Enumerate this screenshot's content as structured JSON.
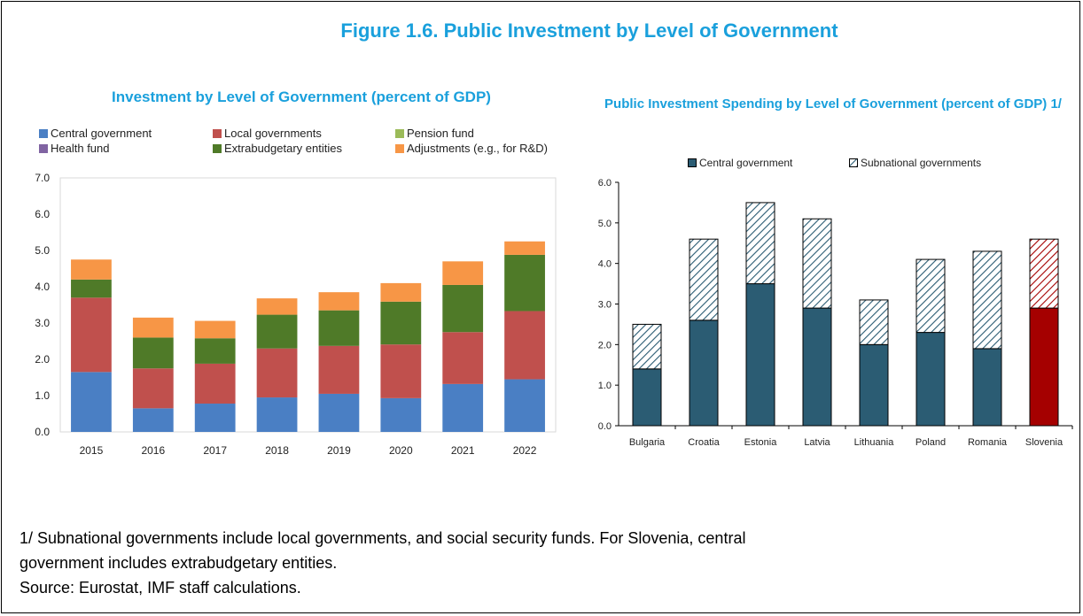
{
  "figure_title": "Figure 1.6. Public Investment by Level of Government",
  "colors": {
    "central": "#4a7fc4",
    "local": "#c0504d",
    "pension": "#9bbb59",
    "health": "#8064a2",
    "extrabudgetary": "#4f7a28",
    "adjustments": "#f79646",
    "right_central": "#2b5c73",
    "slovenia": "#a50000",
    "title": "#1aa0dc"
  },
  "chart_data": [
    {
      "type": "bar",
      "stacked": true,
      "title": "Investment by Level of Government (percent of GDP)",
      "categories": [
        "2015",
        "2016",
        "2017",
        "2018",
        "2019",
        "2020",
        "2021",
        "2022"
      ],
      "series": [
        {
          "name": "Central government",
          "values": [
            1.65,
            0.65,
            0.78,
            0.95,
            1.05,
            0.93,
            1.32,
            1.45
          ]
        },
        {
          "name": "Local governments",
          "values": [
            2.05,
            1.1,
            1.1,
            1.35,
            1.32,
            1.48,
            1.43,
            1.88
          ]
        },
        {
          "name": "Pension fund",
          "values": [
            0,
            0,
            0,
            0,
            0,
            0,
            0,
            0
          ]
        },
        {
          "name": "Health fund",
          "values": [
            0,
            0,
            0,
            0,
            0,
            0,
            0,
            0
          ]
        },
        {
          "name": "Extrabudgetary entities",
          "values": [
            0.5,
            0.85,
            0.7,
            0.93,
            0.98,
            1.18,
            1.3,
            1.55
          ]
        },
        {
          "name": "Adjustments (e.g., for R&D)",
          "values": [
            0.55,
            0.55,
            0.48,
            0.45,
            0.5,
            0.51,
            0.65,
            0.37
          ]
        }
      ],
      "ylim": [
        0,
        7
      ],
      "yticks": [
        "0.0",
        "1.0",
        "2.0",
        "3.0",
        "4.0",
        "5.0",
        "6.0",
        "7.0"
      ],
      "legend": "top"
    },
    {
      "type": "bar",
      "stacked": true,
      "title": "Public Investment Spending by Level of Government (percent of GDP) 1/",
      "categories": [
        "Bulgaria",
        "Croatia",
        "Estonia",
        "Latvia",
        "Lithuania",
        "Poland",
        "Romania",
        "Slovenia"
      ],
      "series": [
        {
          "name": "Central government",
          "values": [
            1.4,
            2.6,
            3.5,
            2.9,
            2.0,
            2.3,
            1.9,
            2.9
          ]
        },
        {
          "name": "Subnational governments",
          "values": [
            1.1,
            2.0,
            2.0,
            2.2,
            1.1,
            1.8,
            2.4,
            1.7
          ]
        }
      ],
      "ylim": [
        0,
        6
      ],
      "yticks": [
        "0.0",
        "1.0",
        "2.0",
        "3.0",
        "4.0",
        "5.0",
        "6.0"
      ],
      "legend": "top"
    }
  ],
  "footnote": {
    "line1": "1/ Subnational governments include local governments, and social security funds. For Slovenia, central",
    "line2": "government includes extrabudgetary entities.",
    "source": "Source: Eurostat, IMF staff calculations."
  }
}
